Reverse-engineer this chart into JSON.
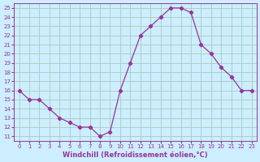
{
  "x": [
    0,
    1,
    2,
    3,
    4,
    5,
    6,
    7,
    8,
    9,
    10,
    11,
    12,
    13,
    14,
    15,
    16,
    17,
    18,
    19,
    20,
    21,
    22,
    23
  ],
  "y": [
    16,
    15,
    15,
    14,
    13,
    12.5,
    12,
    12,
    11,
    11.5,
    16,
    19,
    22,
    23,
    24,
    25,
    25,
    24.5,
    21,
    20,
    18.5,
    17.5,
    16,
    16
  ],
  "ylim": [
    10.5,
    25.5
  ],
  "xlim": [
    -0.5,
    23.5
  ],
  "yticks": [
    11,
    12,
    13,
    14,
    15,
    16,
    17,
    18,
    19,
    20,
    21,
    22,
    23,
    24,
    25
  ],
  "xticks": [
    0,
    1,
    2,
    3,
    4,
    5,
    6,
    7,
    8,
    9,
    10,
    11,
    12,
    13,
    14,
    15,
    16,
    17,
    18,
    19,
    20,
    21,
    22,
    23
  ],
  "line_color": "#993399",
  "marker": "P",
  "bg_color": "#cceeff",
  "grid_color": "#aaccbb",
  "xlabel": "Windchill (Refroidissement éolien,°C)",
  "xlabel_color": "#993399",
  "tick_color": "#993399",
  "figsize": [
    3.2,
    2.0
  ],
  "dpi": 100
}
